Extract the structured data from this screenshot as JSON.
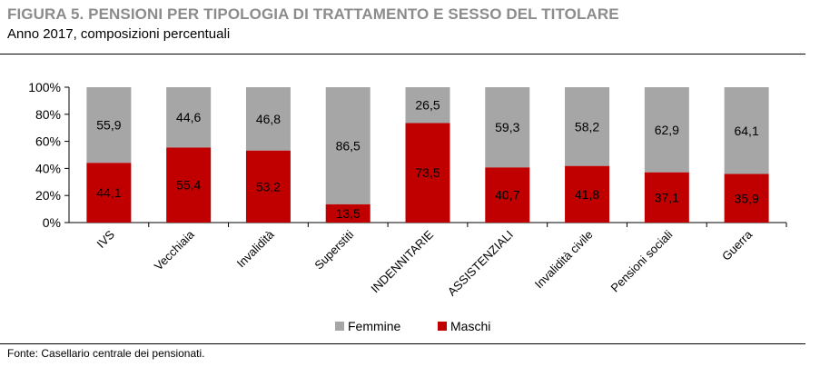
{
  "header": {
    "title": "FIGURA 5. PENSIONI PER TIPOLOGIA DI TRATTAMENTO E SESSO DEL TITOLARE",
    "subtitle": "Anno 2017, composizioni percentuali"
  },
  "footer": {
    "source": "Fonte: Casellario centrale dei pensionati."
  },
  "chart_data": {
    "type": "bar",
    "stacked": true,
    "categories": [
      "IVS",
      "Vecchiaia",
      "Invalidità",
      "Superstiti",
      "INDENNITARIE",
      "ASSISTENZIALI",
      "Invalidità civile",
      "Pensioni sociali",
      "Guerra"
    ],
    "series": [
      {
        "name": "Maschi",
        "color": "#c00000",
        "values": [
          44.1,
          55.4,
          53.2,
          13.5,
          73.5,
          40.7,
          41.8,
          37.1,
          35.9
        ],
        "labels": [
          "44,1",
          "55,4",
          "53,2",
          "13,5",
          "73,5",
          "40,7",
          "41,8",
          "37,1",
          "35,9"
        ]
      },
      {
        "name": "Femmine",
        "color": "#a6a6a6",
        "values": [
          55.9,
          44.6,
          46.8,
          86.5,
          26.5,
          59.3,
          58.2,
          62.9,
          64.1
        ],
        "labels": [
          "55,9",
          "44,6",
          "46,8",
          "86,5",
          "26,5",
          "59,3",
          "58,2",
          "62,9",
          "64,1"
        ]
      }
    ],
    "yticks": [
      "0%",
      "20%",
      "40%",
      "60%",
      "80%",
      "100%"
    ],
    "ylim": [
      0,
      100
    ],
    "legend": {
      "placement": "bottom",
      "entries": [
        "Femmine",
        "Maschi"
      ]
    }
  }
}
